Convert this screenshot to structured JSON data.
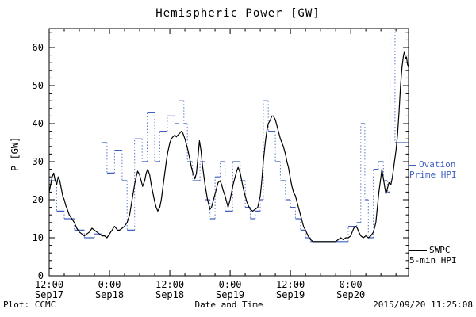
{
  "title": "Hemispheric Power [GW]",
  "y_axis_label": "P [GW]",
  "x_axis_label": "Date and Time",
  "footer": {
    "left": "Plot: CCMC",
    "right": "2015/09/20 11:25:08"
  },
  "legend": {
    "ovation": {
      "line1": "Ovation",
      "line2": "Prime HPI"
    },
    "swpc": {
      "line1": "SWPC",
      "line2": "5-min HPI"
    }
  },
  "colors": {
    "ovation": "#4060c0",
    "swpc": "#000000",
    "background": "#ffffff",
    "frame": "#000000"
  },
  "chart_data": {
    "type": "line",
    "title": "Hemispheric Power [GW]",
    "xlabel": "Date and Time",
    "ylabel": "P [GW]",
    "xlim": [
      0,
      71.5
    ],
    "ylim": [
      0,
      65
    ],
    "x_unit": "hours since Sep17 12:00",
    "grid": false,
    "legend_position": "right-outside",
    "y_ticks": [
      0,
      10,
      20,
      30,
      40,
      50,
      60
    ],
    "x_ticks": [
      {
        "t": 0,
        "time": "12:00",
        "date": "Sep17"
      },
      {
        "t": 12,
        "time": "0:00",
        "date": "Sep18"
      },
      {
        "t": 24,
        "time": "12:00",
        "date": "Sep18"
      },
      {
        "t": 36,
        "time": "0:00",
        "date": "Sep19"
      },
      {
        "t": 48,
        "time": "12:00",
        "date": "Sep19"
      },
      {
        "t": 60,
        "time": "0:00",
        "date": "Sep20"
      }
    ],
    "series": [
      {
        "name": "Ovation Prime HPI",
        "style": "step",
        "color": "#4060c0",
        "points": [
          [
            0,
            25
          ],
          [
            1.5,
            17
          ],
          [
            3,
            15
          ],
          [
            5,
            12
          ],
          [
            7,
            10
          ],
          [
            9,
            11
          ],
          [
            10.5,
            35
          ],
          [
            11.5,
            27
          ],
          [
            13,
            33
          ],
          [
            14.5,
            25
          ],
          [
            15.5,
            12
          ],
          [
            17,
            36
          ],
          [
            18.5,
            30
          ],
          [
            19.5,
            43
          ],
          [
            21,
            30
          ],
          [
            22,
            38
          ],
          [
            23.5,
            42
          ],
          [
            25,
            40
          ],
          [
            25.8,
            46
          ],
          [
            26.8,
            40
          ],
          [
            27.5,
            30
          ],
          [
            28.5,
            25
          ],
          [
            30,
            30
          ],
          [
            31,
            20
          ],
          [
            32,
            15
          ],
          [
            33,
            26
          ],
          [
            34,
            30
          ],
          [
            35,
            17
          ],
          [
            36.5,
            30
          ],
          [
            38,
            25
          ],
          [
            39,
            18
          ],
          [
            40,
            15
          ],
          [
            41,
            17
          ],
          [
            42,
            20
          ],
          [
            42.6,
            46
          ],
          [
            43.6,
            38
          ],
          [
            45,
            30
          ],
          [
            46,
            25
          ],
          [
            47,
            20
          ],
          [
            48,
            18
          ],
          [
            49,
            15
          ],
          [
            50,
            12
          ],
          [
            51,
            10
          ],
          [
            52,
            9
          ],
          [
            59.5,
            13
          ],
          [
            61.2,
            14
          ],
          [
            62,
            40
          ],
          [
            62.8,
            20
          ],
          [
            63.5,
            10
          ],
          [
            64.5,
            28
          ],
          [
            65.5,
            30
          ],
          [
            66.5,
            25
          ],
          [
            67.3,
            22
          ],
          [
            67.8,
            65
          ],
          [
            68.8,
            35
          ]
        ]
      },
      {
        "name": "SWPC 5-min HPI",
        "style": "line",
        "color": "#000000",
        "points": [
          [
            0,
            22
          ],
          [
            0.3,
            24
          ],
          [
            0.6,
            26
          ],
          [
            0.9,
            27
          ],
          [
            1.2,
            25
          ],
          [
            1.5,
            24
          ],
          [
            1.8,
            26
          ],
          [
            2.1,
            25
          ],
          [
            2.4,
            23
          ],
          [
            2.7,
            21
          ],
          [
            3,
            20
          ],
          [
            3.3,
            18.5
          ],
          [
            3.6,
            17.5
          ],
          [
            4,
            16
          ],
          [
            4.5,
            15
          ],
          [
            5,
            14
          ],
          [
            5.5,
            12.5
          ],
          [
            6,
            11.5
          ],
          [
            6.5,
            11
          ],
          [
            7,
            10.5
          ],
          [
            7.5,
            11
          ],
          [
            8,
            11.5
          ],
          [
            8.5,
            12.5
          ],
          [
            9,
            12
          ],
          [
            9.5,
            11.5
          ],
          [
            10,
            11
          ],
          [
            10.5,
            10.5
          ],
          [
            11,
            10.5
          ],
          [
            11.5,
            10
          ],
          [
            12,
            11
          ],
          [
            12.5,
            12
          ],
          [
            13,
            13
          ],
          [
            13.3,
            12.5
          ],
          [
            13.6,
            12
          ],
          [
            14,
            12
          ],
          [
            14.5,
            12.5
          ],
          [
            15,
            13
          ],
          [
            15.5,
            14
          ],
          [
            16,
            16
          ],
          [
            16.5,
            20
          ],
          [
            17,
            24
          ],
          [
            17.3,
            26
          ],
          [
            17.6,
            27.5
          ],
          [
            18,
            26.5
          ],
          [
            18.3,
            25
          ],
          [
            18.6,
            23.5
          ],
          [
            19,
            25
          ],
          [
            19.3,
            27
          ],
          [
            19.6,
            28
          ],
          [
            20,
            26.5
          ],
          [
            20.3,
            24
          ],
          [
            20.6,
            22
          ],
          [
            21,
            19.5
          ],
          [
            21.3,
            18
          ],
          [
            21.6,
            17
          ],
          [
            22,
            18
          ],
          [
            22.3,
            20
          ],
          [
            22.6,
            23
          ],
          [
            23,
            27
          ],
          [
            23.3,
            30
          ],
          [
            23.6,
            32.5
          ],
          [
            24,
            35
          ],
          [
            24.3,
            36
          ],
          [
            24.6,
            36.5
          ],
          [
            25,
            37
          ],
          [
            25.3,
            36.5
          ],
          [
            25.6,
            37
          ],
          [
            26,
            37.5
          ],
          [
            26.3,
            38
          ],
          [
            26.6,
            37.5
          ],
          [
            27,
            36
          ],
          [
            27.3,
            34.5
          ],
          [
            27.6,
            33
          ],
          [
            28,
            30.5
          ],
          [
            28.3,
            28.5
          ],
          [
            28.6,
            27
          ],
          [
            29,
            25.5
          ],
          [
            29.3,
            27
          ],
          [
            29.6,
            31
          ],
          [
            29.9,
            35.5
          ],
          [
            30.2,
            33
          ],
          [
            30.5,
            29
          ],
          [
            31,
            24
          ],
          [
            31.5,
            20
          ],
          [
            32,
            17.5
          ],
          [
            32.3,
            18
          ],
          [
            32.6,
            19.5
          ],
          [
            33,
            21.5
          ],
          [
            33.3,
            23
          ],
          [
            33.6,
            24.5
          ],
          [
            34,
            25
          ],
          [
            34.3,
            24
          ],
          [
            34.6,
            22.5
          ],
          [
            35,
            21
          ],
          [
            35.3,
            19.5
          ],
          [
            35.6,
            18
          ],
          [
            36,
            20
          ],
          [
            36.3,
            22
          ],
          [
            36.6,
            24
          ],
          [
            37,
            26
          ],
          [
            37.3,
            27.5
          ],
          [
            37.6,
            28.5
          ],
          [
            38,
            27
          ],
          [
            38.3,
            25
          ],
          [
            38.6,
            23
          ],
          [
            39,
            21
          ],
          [
            39.3,
            19.5
          ],
          [
            39.6,
            18.5
          ],
          [
            40,
            17.5
          ],
          [
            40.5,
            17
          ],
          [
            41,
            17.5
          ],
          [
            41.5,
            18
          ],
          [
            42,
            21
          ],
          [
            42.3,
            25
          ],
          [
            42.6,
            30
          ],
          [
            43,
            35
          ],
          [
            43.3,
            38
          ],
          [
            43.6,
            40
          ],
          [
            44,
            41
          ],
          [
            44.3,
            42
          ],
          [
            44.6,
            42
          ],
          [
            45,
            41
          ],
          [
            45.3,
            39.5
          ],
          [
            45.6,
            38
          ],
          [
            46,
            36
          ],
          [
            46.3,
            35
          ],
          [
            46.6,
            34
          ],
          [
            47,
            32
          ],
          [
            47.3,
            30
          ],
          [
            47.6,
            28.5
          ],
          [
            48,
            25.5
          ],
          [
            48.3,
            23.5
          ],
          [
            48.6,
            22
          ],
          [
            49,
            21
          ],
          [
            49.3,
            19.5
          ],
          [
            49.6,
            18
          ],
          [
            50,
            16
          ],
          [
            50.3,
            14.5
          ],
          [
            50.6,
            13
          ],
          [
            51,
            12
          ],
          [
            51.5,
            10.5
          ],
          [
            52,
            9.5
          ],
          [
            52.5,
            9
          ],
          [
            53,
            9
          ],
          [
            54,
            9
          ],
          [
            55,
            9
          ],
          [
            56,
            9
          ],
          [
            57,
            9
          ],
          [
            57.5,
            9.5
          ],
          [
            58,
            10
          ],
          [
            58.5,
            9.5
          ],
          [
            59,
            10
          ],
          [
            59.5,
            10
          ],
          [
            60,
            10.5
          ],
          [
            60.3,
            11.5
          ],
          [
            60.6,
            12.5
          ],
          [
            61,
            13
          ],
          [
            61.3,
            12.5
          ],
          [
            61.6,
            11.5
          ],
          [
            62,
            10.5
          ],
          [
            62.5,
            10
          ],
          [
            63,
            10.5
          ],
          [
            63.5,
            10
          ],
          [
            64,
            10.5
          ],
          [
            64.5,
            11.5
          ],
          [
            65,
            14
          ],
          [
            65.3,
            18
          ],
          [
            65.6,
            22
          ],
          [
            66,
            26
          ],
          [
            66.2,
            28
          ],
          [
            66.5,
            25.5
          ],
          [
            66.8,
            23
          ],
          [
            67,
            21.5
          ],
          [
            67.3,
            23
          ],
          [
            67.6,
            24.5
          ],
          [
            68,
            24
          ],
          [
            68.3,
            26
          ],
          [
            68.6,
            29
          ],
          [
            69,
            33
          ],
          [
            69.3,
            37
          ],
          [
            69.6,
            43
          ],
          [
            69.9,
            50
          ],
          [
            70.2,
            55
          ],
          [
            70.5,
            58
          ],
          [
            70.7,
            59
          ],
          [
            70.9,
            57
          ],
          [
            71.1,
            57.5
          ],
          [
            71.3,
            55.5
          ],
          [
            71.5,
            55
          ]
        ]
      }
    ]
  }
}
